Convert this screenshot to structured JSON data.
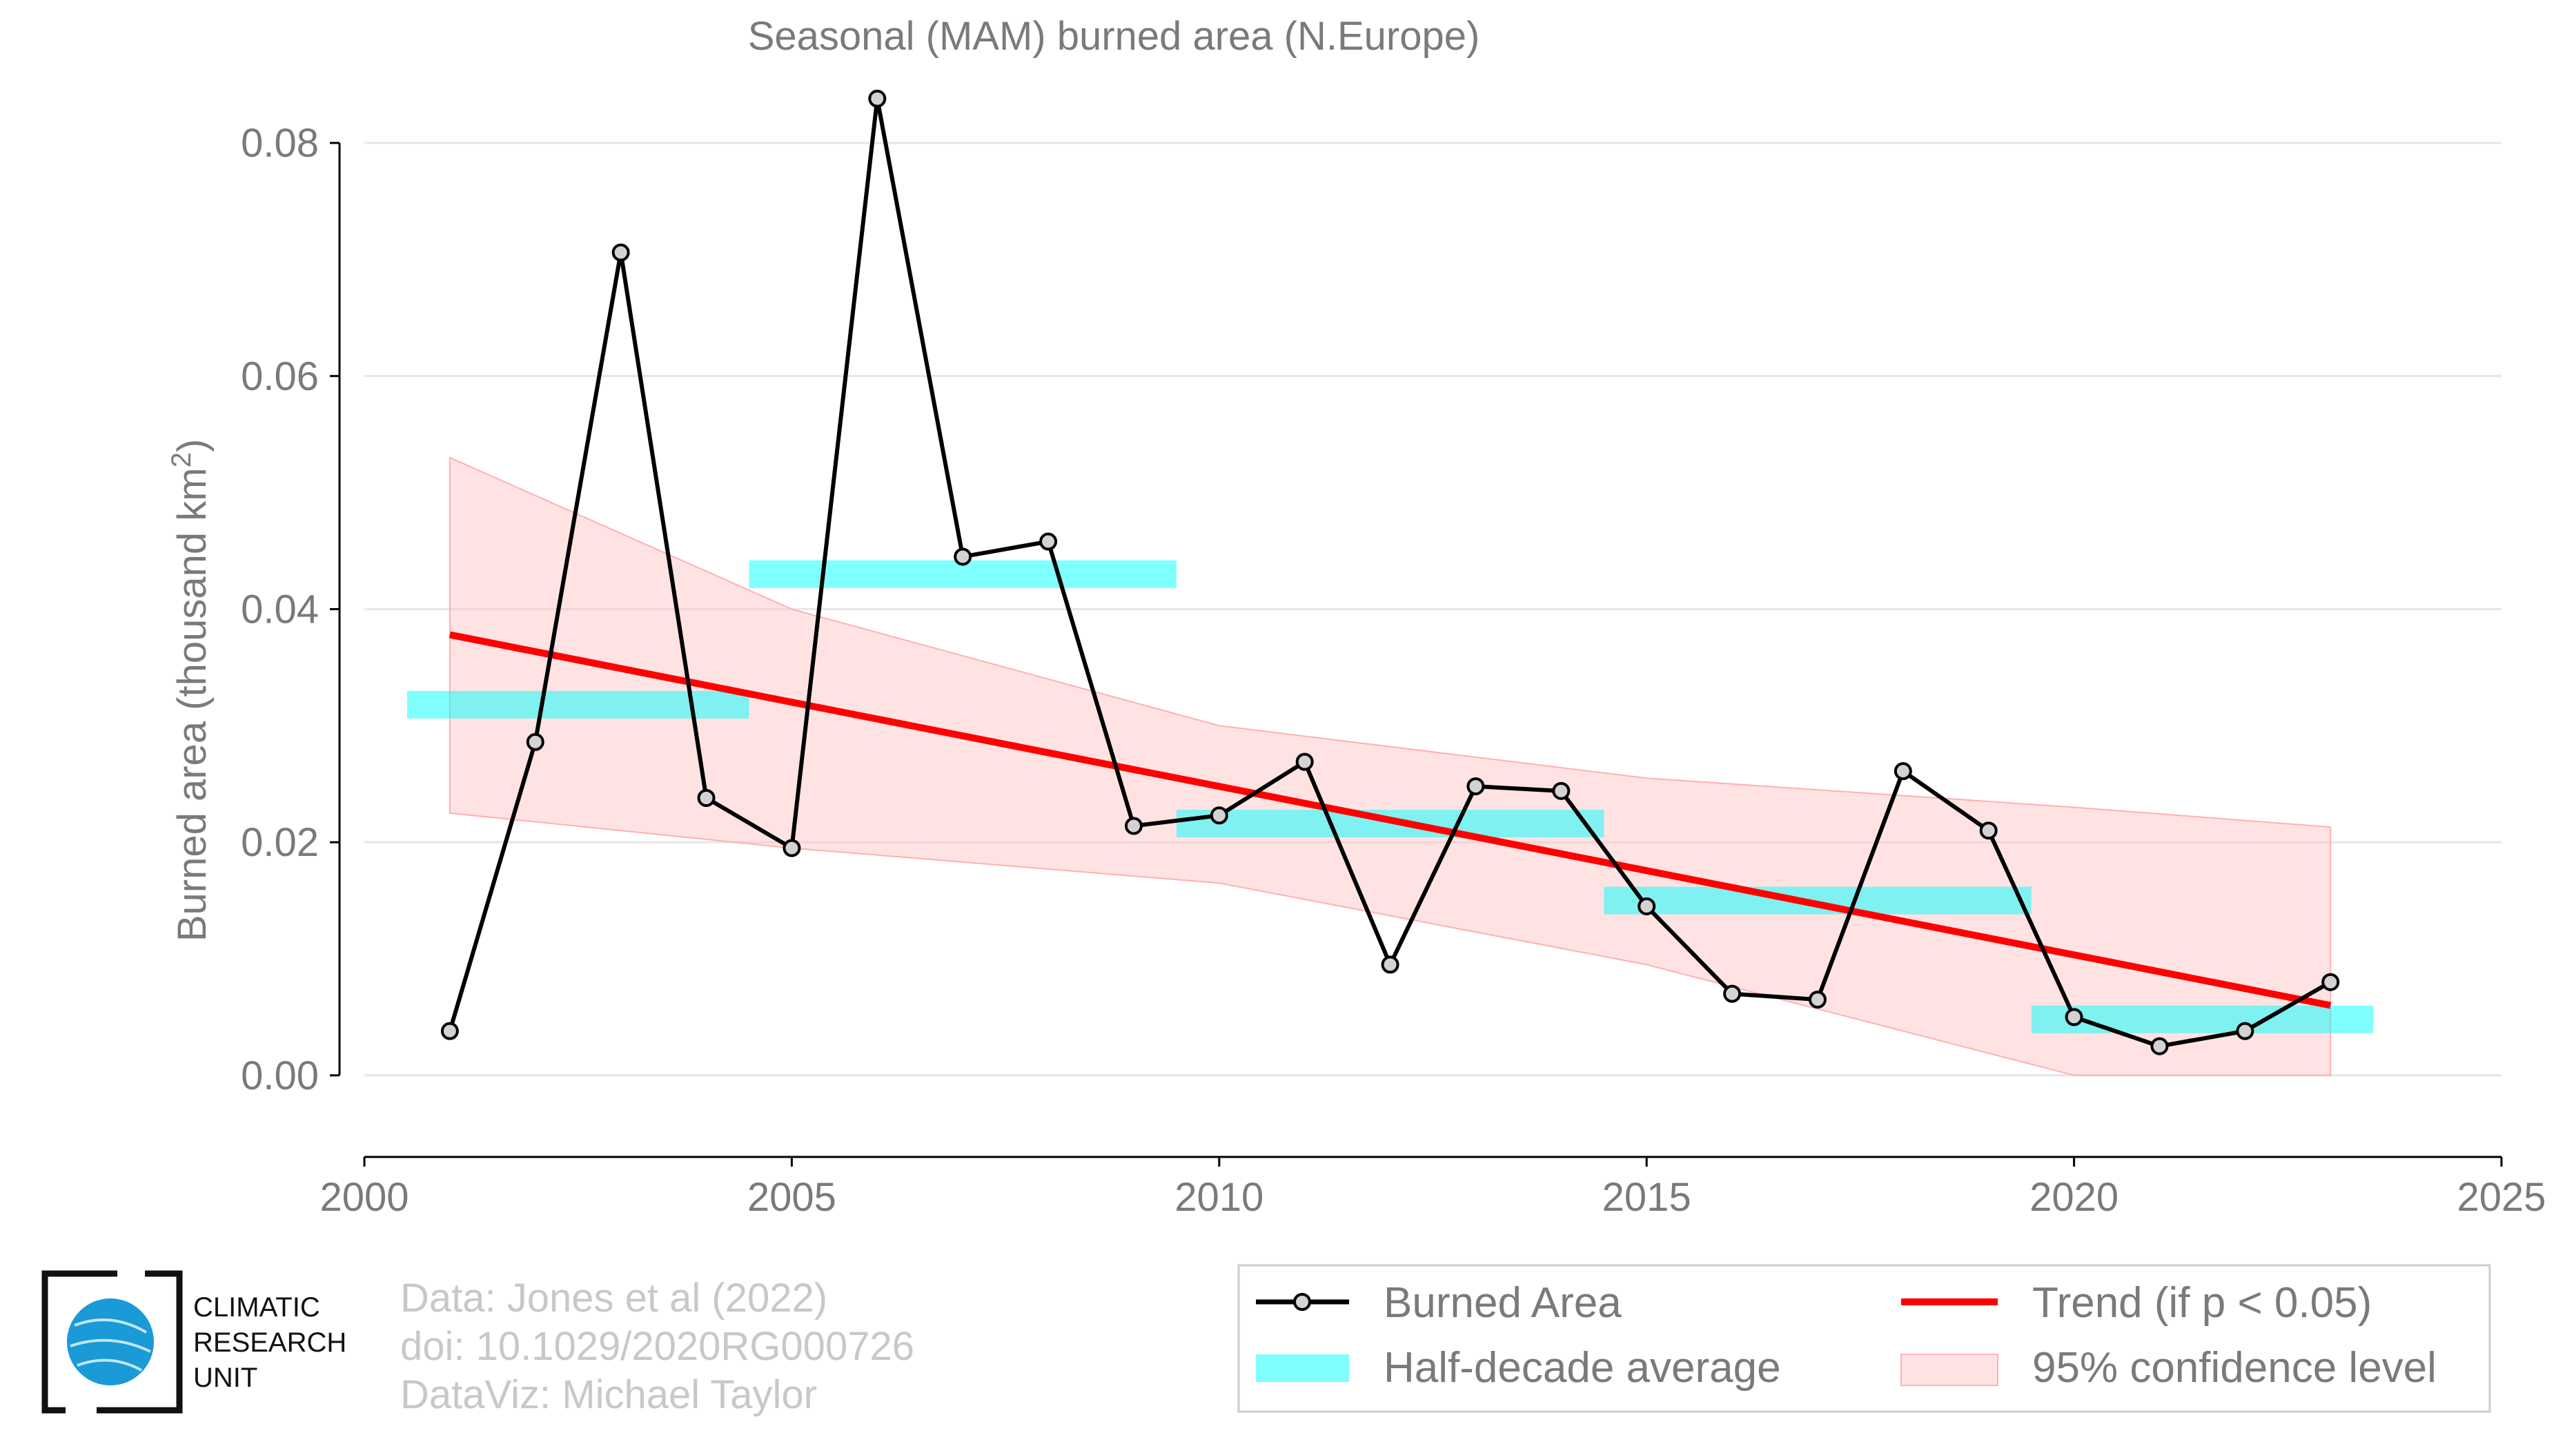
{
  "chart_data": {
    "type": "line",
    "title": "Seasonal (MAM) burned area (N.Europe)",
    "ylabel": "Burned area (thousand km",
    "ylabel_sup": "2",
    "ylabel_end": ")",
    "xlim": [
      2000,
      2025
    ],
    "ylim": [
      -0.007,
      0.088
    ],
    "xticks": [
      2000,
      2005,
      2010,
      2015,
      2020,
      2025
    ],
    "yticks": [
      0.0,
      0.02,
      0.04,
      0.06,
      0.08
    ],
    "ytick_labels": [
      "0.00",
      "0.02",
      "0.04",
      "0.06",
      "0.08"
    ],
    "grid": "horizontal",
    "legend_position": "bottom-right",
    "series": [
      {
        "name": "Burned Area",
        "type": "line",
        "color": "#000000",
        "marker_color": "#d3d3d3",
        "x": [
          2001,
          2002,
          2003,
          2004,
          2005,
          2006,
          2007,
          2008,
          2009,
          2010,
          2011,
          2012,
          2013,
          2014,
          2015,
          2016,
          2017,
          2018,
          2019,
          2020,
          2021,
          2022,
          2023
        ],
        "y": [
          0.0038,
          0.0286,
          0.0706,
          0.0238,
          0.0195,
          0.0838,
          0.0445,
          0.0458,
          0.0214,
          0.0223,
          0.0269,
          0.0095,
          0.0248,
          0.0244,
          0.0145,
          0.007,
          0.0065,
          0.0261,
          0.021,
          0.005,
          0.0025,
          0.0038,
          0.008
        ]
      },
      {
        "name": "Half-decade average",
        "type": "step",
        "color": "#00ffff",
        "segments": [
          {
            "x0": 2000.5,
            "x1": 2004.5,
            "y": 0.0318
          },
          {
            "x0": 2004.5,
            "x1": 2009.5,
            "y": 0.043
          },
          {
            "x0": 2009.5,
            "x1": 2014.5,
            "y": 0.0216
          },
          {
            "x0": 2014.5,
            "x1": 2019.5,
            "y": 0.015
          },
          {
            "x0": 2019.5,
            "x1": 2023.5,
            "y": 0.0048
          }
        ]
      },
      {
        "name": "Trend (if p < 0.05)",
        "type": "line",
        "color": "#ff0000",
        "x": [
          2001,
          2023
        ],
        "y": [
          0.0378,
          0.006
        ]
      },
      {
        "name": "95% confidence level",
        "type": "area",
        "color": "#ffc0c0",
        "x": [
          2001,
          2005,
          2010,
          2015,
          2020,
          2023
        ],
        "upper": [
          0.053,
          0.04,
          0.03,
          0.0255,
          0.023,
          0.0213
        ],
        "lower": [
          0.0225,
          0.0195,
          0.0165,
          0.0095,
          0.0,
          0.0
        ]
      }
    ]
  },
  "credits": {
    "line1": "Data: Jones et al (2022)",
    "line2": "doi: 10.1029/2020RG000726",
    "line3": "DataViz: Michael Taylor"
  },
  "logo": {
    "line1": "CLIMATIC",
    "line2": "RESEARCH",
    "line3": "UNIT",
    "globe_color": "#1a9ad6"
  }
}
